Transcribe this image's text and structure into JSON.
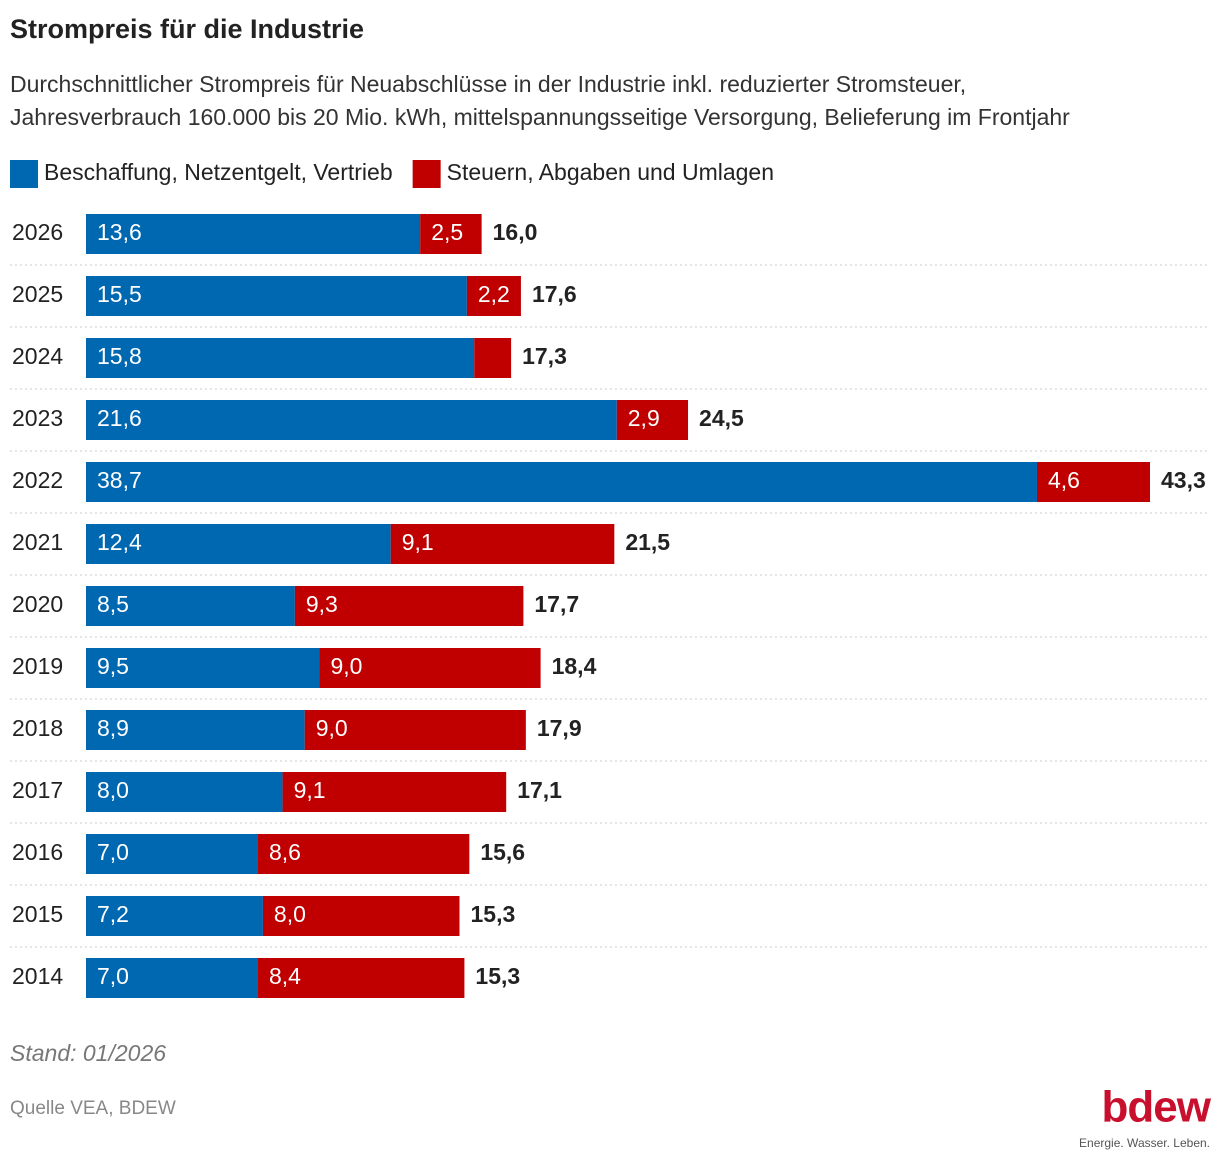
{
  "chart_data": {
    "type": "stacked-bar-horizontal",
    "title": "Strompreis für die Industrie",
    "subtitle": [
      "Durchschnittlicher Strompreis für Neuabschlüsse in der Industrie inkl. reduzierter Stromsteuer,",
      "Jahresverbrauch 160.000 bis 20 Mio. kWh, mittelspannungsseitige Versorgung, Belieferung im Frontjahr"
    ],
    "categories": [
      "2026",
      "2025",
      "2024",
      "2023",
      "2022",
      "2021",
      "2020",
      "2019",
      "2018",
      "2017",
      "2016",
      "2015",
      "2014"
    ],
    "series": [
      {
        "name": "Beschaffung, Netzentgelt, Vertrieb",
        "color": "#0067b1",
        "values": [
          13.6,
          15.5,
          15.8,
          21.6,
          38.7,
          12.4,
          8.5,
          9.5,
          8.9,
          8.0,
          7.0,
          7.2,
          7.0
        ],
        "value_labels": [
          "13,6",
          "15,5",
          "15,8",
          "21,6",
          "38,7",
          "12,4",
          "8,5",
          "9,5",
          "8,9",
          "8,0",
          "7,0",
          "7,2",
          "7,0"
        ]
      },
      {
        "name": "Steuern, Abgaben und Umlagen",
        "color": "#c00000",
        "values": [
          2.5,
          2.2,
          1.5,
          2.9,
          4.6,
          9.1,
          9.3,
          9.0,
          9.0,
          9.1,
          8.6,
          8.0,
          8.4
        ],
        "value_labels": [
          "2,5",
          "2,2",
          null,
          "2,9",
          "4,6",
          "9,1",
          "9,3",
          "9,0",
          "9,0",
          "9,1",
          "8,6",
          "8,0",
          "8,4"
        ]
      }
    ],
    "totals": [
      16.0,
      17.6,
      17.3,
      24.5,
      43.3,
      21.5,
      17.7,
      18.4,
      17.9,
      17.1,
      15.6,
      15.3,
      15.3
    ],
    "total_labels": [
      "16,0",
      "17,6",
      "17,3",
      "24,5",
      "43,3",
      "21,5",
      "17,7",
      "18,4",
      "17,9",
      "17,1",
      "15,6",
      "15,3",
      "15,3"
    ],
    "note": "Stand: 01/2026",
    "source": "Quelle VEA, BDEW",
    "logo": {
      "name": "bdew",
      "claim": "Energie. Wasser. Leben."
    }
  }
}
